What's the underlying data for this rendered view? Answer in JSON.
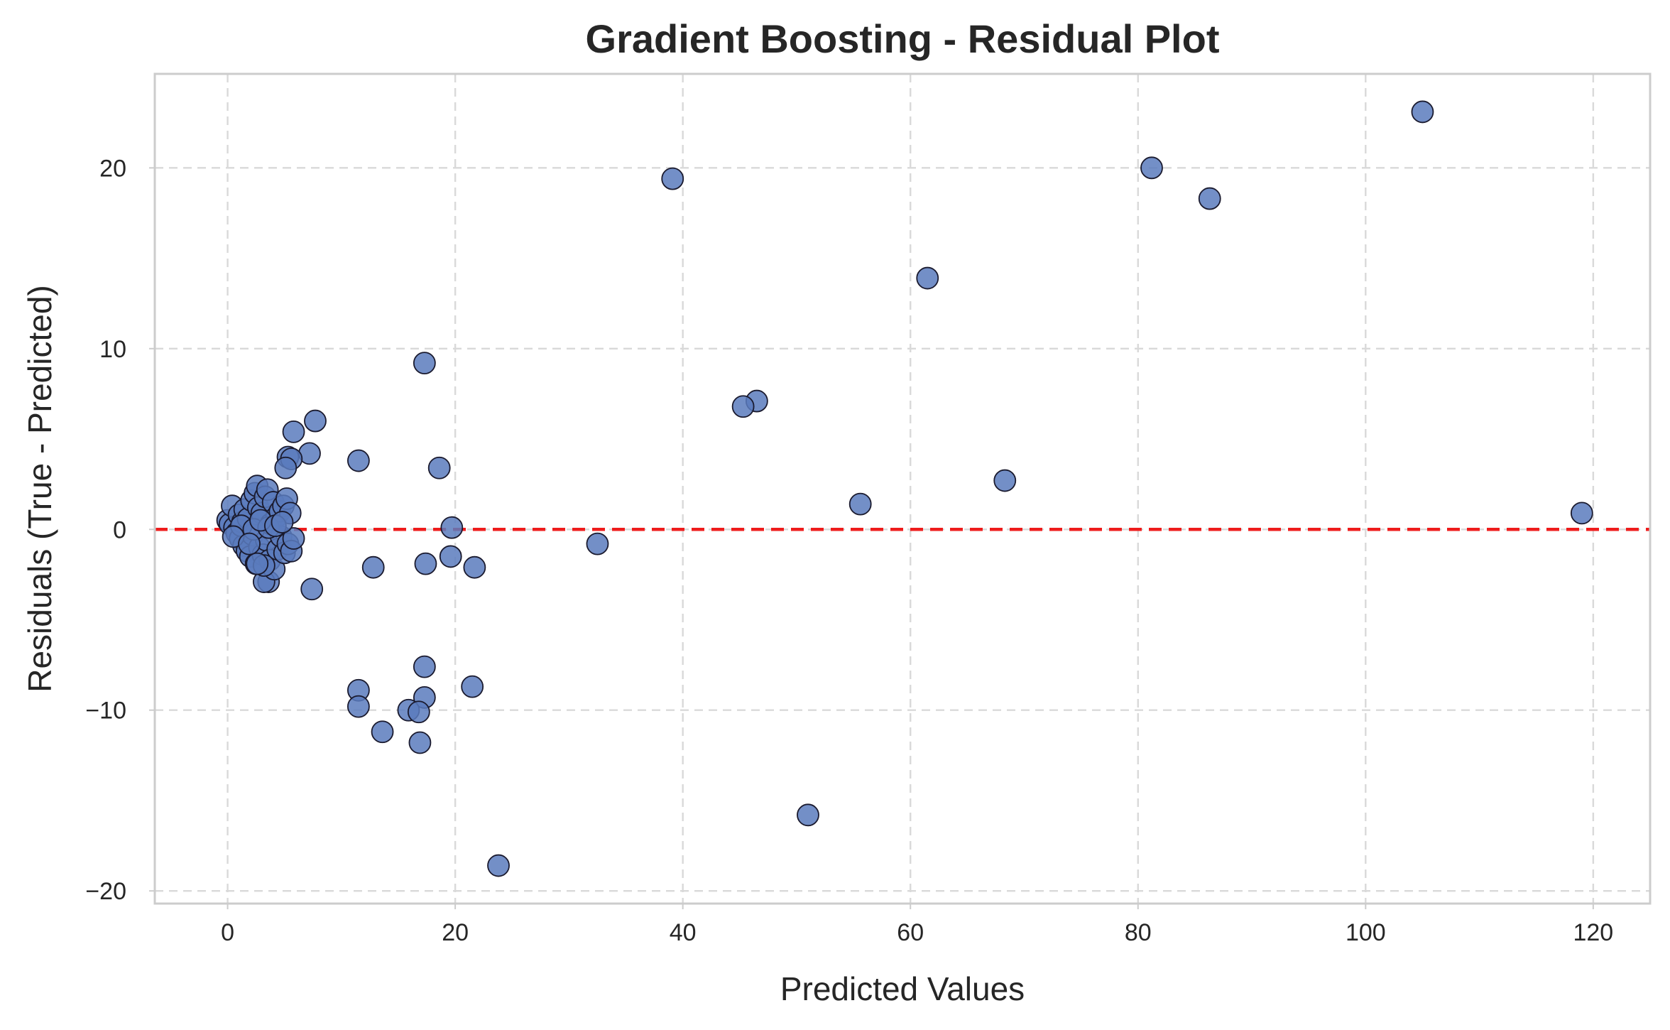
{
  "chart_data": {
    "type": "scatter",
    "title": "Gradient Boosting - Residual Plot",
    "xlabel": "Predicted Values",
    "ylabel": "Residuals (True - Predicted)",
    "xlim": [
      -6.4,
      125
    ],
    "ylim": [
      -20.7,
      25.2
    ],
    "xticks": [
      0,
      20,
      40,
      60,
      80,
      100,
      120
    ],
    "yticks": [
      -20,
      -10,
      0,
      10,
      20
    ],
    "xtick_labels": [
      "0",
      "20",
      "40",
      "60",
      "80",
      "100",
      "120"
    ],
    "ytick_labels": [
      "−20",
      "−10",
      "0",
      "10",
      "20"
    ],
    "grid": true,
    "reference_line": {
      "y": 0,
      "color": "#ee1c1c",
      "style": "dashed"
    },
    "point_color": "#5a7bbd",
    "point_edge_color": "#1a1a2e",
    "points": [
      {
        "x": 105.0,
        "y": 23.1
      },
      {
        "x": 81.2,
        "y": 20.0
      },
      {
        "x": 86.3,
        "y": 18.3
      },
      {
        "x": 39.1,
        "y": 19.4
      },
      {
        "x": 61.5,
        "y": 13.9
      },
      {
        "x": 17.3,
        "y": 9.2
      },
      {
        "x": 46.5,
        "y": 7.1
      },
      {
        "x": 45.3,
        "y": 6.8
      },
      {
        "x": 7.7,
        "y": 6.0
      },
      {
        "x": 5.8,
        "y": 5.4
      },
      {
        "x": 7.2,
        "y": 4.2
      },
      {
        "x": 11.5,
        "y": 3.8
      },
      {
        "x": 5.3,
        "y": 4.0
      },
      {
        "x": 5.6,
        "y": 3.9
      },
      {
        "x": 5.1,
        "y": 3.4
      },
      {
        "x": 18.6,
        "y": 3.4
      },
      {
        "x": 68.3,
        "y": 2.7
      },
      {
        "x": 55.6,
        "y": 1.4
      },
      {
        "x": 119.0,
        "y": 0.9
      },
      {
        "x": 19.7,
        "y": 0.1
      },
      {
        "x": 32.5,
        "y": -0.8
      },
      {
        "x": 19.6,
        "y": -1.5
      },
      {
        "x": 17.4,
        "y": -1.9
      },
      {
        "x": 12.8,
        "y": -2.1
      },
      {
        "x": 21.7,
        "y": -2.1
      },
      {
        "x": 7.4,
        "y": -3.3
      },
      {
        "x": 3.6,
        "y": -2.9
      },
      {
        "x": 3.2,
        "y": -2.9
      },
      {
        "x": 11.5,
        "y": -8.9
      },
      {
        "x": 11.5,
        "y": -9.8
      },
      {
        "x": 17.3,
        "y": -7.6
      },
      {
        "x": 21.5,
        "y": -8.7
      },
      {
        "x": 17.3,
        "y": -9.3
      },
      {
        "x": 15.9,
        "y": -10.0
      },
      {
        "x": 16.8,
        "y": -10.1
      },
      {
        "x": 13.6,
        "y": -11.2
      },
      {
        "x": 16.9,
        "y": -11.8
      },
      {
        "x": 51.0,
        "y": -15.8
      },
      {
        "x": 23.8,
        "y": -18.6
      },
      {
        "x": 0.0,
        "y": 0.5
      },
      {
        "x": 0.2,
        "y": 0.3
      },
      {
        "x": 0.4,
        "y": 1.3
      },
      {
        "x": 0.6,
        "y": 0.1
      },
      {
        "x": 0.8,
        "y": -0.2
      },
      {
        "x": 1.0,
        "y": 0.8
      },
      {
        "x": 1.1,
        "y": -0.5
      },
      {
        "x": 1.3,
        "y": 0.4
      },
      {
        "x": 1.4,
        "y": -0.9
      },
      {
        "x": 1.5,
        "y": 1.1
      },
      {
        "x": 1.7,
        "y": -1.2
      },
      {
        "x": 1.8,
        "y": 0.6
      },
      {
        "x": 2.0,
        "y": -1.5
      },
      {
        "x": 2.1,
        "y": 1.6
      },
      {
        "x": 2.2,
        "y": -0.3
      },
      {
        "x": 2.4,
        "y": 2.0
      },
      {
        "x": 2.5,
        "y": -1.9
      },
      {
        "x": 2.6,
        "y": 2.4
      },
      {
        "x": 2.7,
        "y": 1.2
      },
      {
        "x": 2.8,
        "y": -1.0
      },
      {
        "x": 3.0,
        "y": 0.9
      },
      {
        "x": 3.1,
        "y": -1.4
      },
      {
        "x": 3.3,
        "y": 1.8
      },
      {
        "x": 3.4,
        "y": -0.6
      },
      {
        "x": 3.5,
        "y": 2.2
      },
      {
        "x": 3.7,
        "y": -1.7
      },
      {
        "x": 3.8,
        "y": 0.3
      },
      {
        "x": 4.0,
        "y": 1.5
      },
      {
        "x": 4.1,
        "y": -2.2
      },
      {
        "x": 4.3,
        "y": 0.7
      },
      {
        "x": 4.4,
        "y": -1.1
      },
      {
        "x": 4.6,
        "y": 1.0
      },
      {
        "x": 4.7,
        "y": -0.4
      },
      {
        "x": 4.9,
        "y": 1.3
      },
      {
        "x": 5.0,
        "y": -1.3
      },
      {
        "x": 5.2,
        "y": 1.7
      },
      {
        "x": 5.3,
        "y": -0.8
      },
      {
        "x": 5.5,
        "y": 0.9
      },
      {
        "x": 5.6,
        "y": -1.2
      },
      {
        "x": 5.8,
        "y": -0.5
      },
      {
        "x": 1.2,
        "y": 0.2
      },
      {
        "x": 2.3,
        "y": 0.0
      },
      {
        "x": 3.6,
        "y": 0.1
      },
      {
        "x": 0.5,
        "y": -0.4
      },
      {
        "x": 1.9,
        "y": -0.8
      },
      {
        "x": 2.9,
        "y": 0.5
      },
      {
        "x": 4.2,
        "y": 0.2
      },
      {
        "x": 3.2,
        "y": -2.0
      },
      {
        "x": 2.6,
        "y": -1.9
      },
      {
        "x": 4.8,
        "y": 0.4
      }
    ]
  }
}
